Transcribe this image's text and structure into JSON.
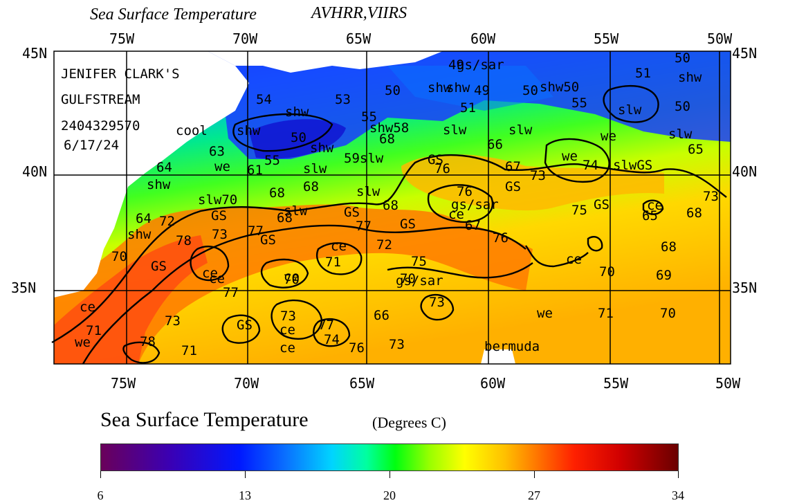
{
  "title": "Sea Surface Temperature",
  "sensors": "AVHRR,VIIRS",
  "lon_labels": [
    "75W",
    "70W",
    "65W",
    "60W",
    "55W",
    "50W"
  ],
  "lat_labels": [
    "45N",
    "40N",
    "35N"
  ],
  "header_block": {
    "line1": "JENIFER CLARK'S",
    "line2": "GULFSTREAM",
    "line3": "2404329570",
    "line4": "6/17/24"
  },
  "annotations": [
    {
      "text": "49"
    },
    {
      "text": "50"
    },
    {
      "text": "shw"
    },
    {
      "text": "51"
    },
    {
      "text": "shw"
    },
    {
      "text": "50"
    },
    {
      "text": "shw"
    },
    {
      "text": "49"
    },
    {
      "text": "50"
    },
    {
      "text": "shw50"
    },
    {
      "text": "54"
    },
    {
      "text": "53"
    },
    {
      "text": "shw"
    },
    {
      "text": "55"
    },
    {
      "text": "51"
    },
    {
      "text": "55"
    },
    {
      "text": "slw"
    },
    {
      "text": "50"
    },
    {
      "text": "cool"
    },
    {
      "text": "shw"
    },
    {
      "text": "shw58"
    },
    {
      "text": "slw"
    },
    {
      "text": "slw"
    },
    {
      "text": "we"
    },
    {
      "text": "slw"
    },
    {
      "text": "50"
    },
    {
      "text": "63"
    },
    {
      "text": "shw"
    },
    {
      "text": "68"
    },
    {
      "text": "66"
    },
    {
      "text": "65"
    },
    {
      "text": "64"
    },
    {
      "text": "we"
    },
    {
      "text": "61"
    },
    {
      "text": "55"
    },
    {
      "text": "slw"
    },
    {
      "text": "59slw"
    },
    {
      "text": "GS"
    },
    {
      "text": "76"
    },
    {
      "text": "67"
    },
    {
      "text": "we"
    },
    {
      "text": "74"
    },
    {
      "text": "slwGS"
    },
    {
      "text": "shw"
    },
    {
      "text": "68"
    },
    {
      "text": "68"
    },
    {
      "text": "slw"
    },
    {
      "text": "73"
    },
    {
      "text": "GS"
    },
    {
      "text": "slw70"
    },
    {
      "text": "76"
    },
    {
      "text": "gs/sar"
    },
    {
      "text": "68"
    },
    {
      "text": "75"
    },
    {
      "text": "GS"
    },
    {
      "text": "ce"
    },
    {
      "text": "73"
    },
    {
      "text": "64"
    },
    {
      "text": "72"
    },
    {
      "text": "GS"
    },
    {
      "text": "slw"
    },
    {
      "text": "GS"
    },
    {
      "text": "ce"
    },
    {
      "text": "65"
    },
    {
      "text": "68"
    },
    {
      "text": "shw"
    },
    {
      "text": "73"
    },
    {
      "text": "77"
    },
    {
      "text": "68"
    },
    {
      "text": "77"
    },
    {
      "text": "GS"
    },
    {
      "text": "ce"
    },
    {
      "text": "67"
    },
    {
      "text": "76"
    },
    {
      "text": "78"
    },
    {
      "text": "GS"
    },
    {
      "text": "ce"
    },
    {
      "text": "72"
    },
    {
      "text": "68"
    },
    {
      "text": "70"
    },
    {
      "text": "71"
    },
    {
      "text": "ce"
    },
    {
      "text": "GS"
    },
    {
      "text": "ce"
    },
    {
      "text": "75"
    },
    {
      "text": "70"
    },
    {
      "text": "69"
    },
    {
      "text": "70"
    },
    {
      "text": "ce"
    },
    {
      "text": "70"
    },
    {
      "text": "gs/sar"
    },
    {
      "text": "77"
    },
    {
      "text": "73"
    },
    {
      "text": "ce"
    },
    {
      "text": "66"
    },
    {
      "text": "73"
    },
    {
      "text": "73"
    },
    {
      "text": "we"
    },
    {
      "text": "71"
    },
    {
      "text": "70"
    },
    {
      "text": "71"
    },
    {
      "text": "GS"
    },
    {
      "text": "ce"
    },
    {
      "text": "77"
    },
    {
      "text": "we"
    },
    {
      "text": "78"
    },
    {
      "text": "ce"
    },
    {
      "text": "74"
    },
    {
      "text": "76"
    },
    {
      "text": "73"
    },
    {
      "text": "bermuda"
    },
    {
      "text": "71"
    },
    {
      "text": "gs/sar"
    }
  ],
  "colorbar": {
    "title": "Sea Surface Temperature",
    "units": "(Degrees C)",
    "tick_labels": [
      "6",
      "13",
      "20",
      "27",
      "34"
    ]
  }
}
